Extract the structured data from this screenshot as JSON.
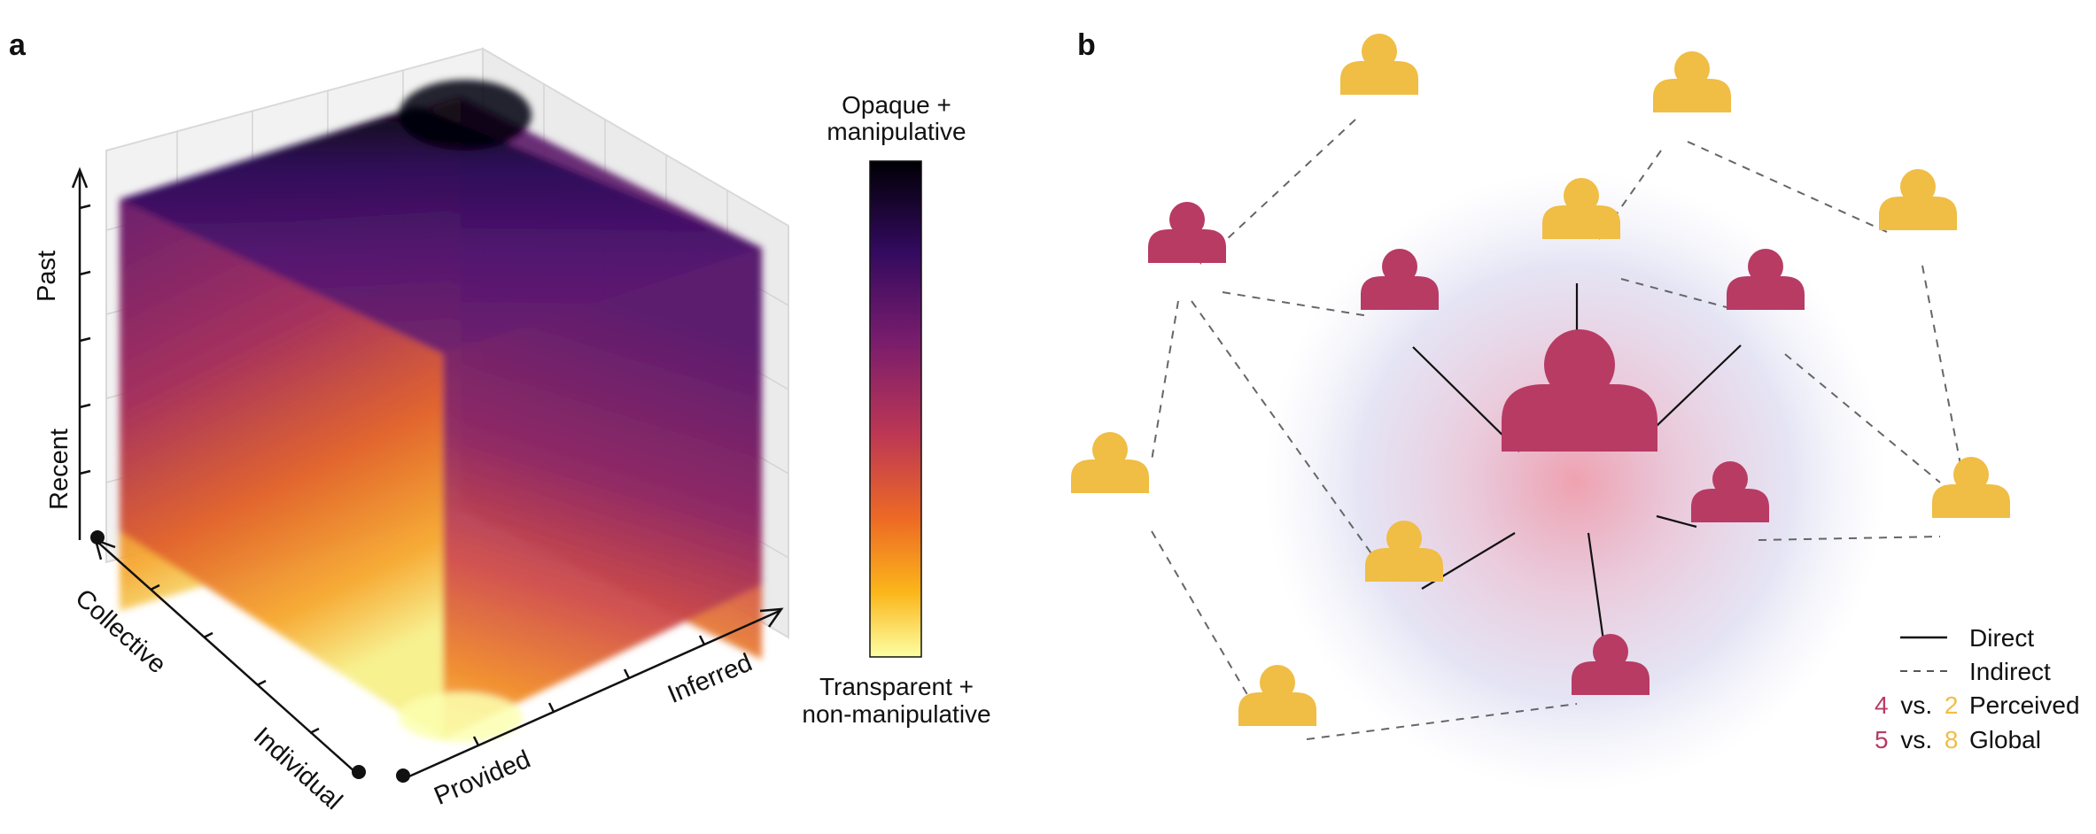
{
  "panel_a": {
    "letter": "a",
    "axes": {
      "vertical": {
        "top_label": "Past",
        "bottom_label": "Recent"
      },
      "left": {
        "top_label": "Collective",
        "bottom_label": "Individual"
      },
      "right": {
        "bottom_label": "Provided",
        "top_label": "Inferred"
      }
    },
    "colorbar": {
      "top_line1": "Opaque +",
      "top_line2": "manipulative",
      "bottom_line1": "Transparent +",
      "bottom_line2": "non-manipulative",
      "colormap": [
        "#000004",
        "#320a5e",
        "#781c6d",
        "#bc3754",
        "#ed6925",
        "#fbb61a",
        "#fcffa4"
      ]
    }
  },
  "panel_b": {
    "letter": "b",
    "colors": {
      "magenta": "#b83b64",
      "yellow": "#f0bd45"
    },
    "legend": {
      "direct": "Direct",
      "indirect": "Indirect",
      "perceived_a": "4",
      "perceived_vs": "vs.",
      "perceived_b": "2",
      "perceived_label": "Perceived",
      "global_a": "5",
      "global_vs": "vs.",
      "global_b": "8",
      "global_label": "Global"
    }
  }
}
